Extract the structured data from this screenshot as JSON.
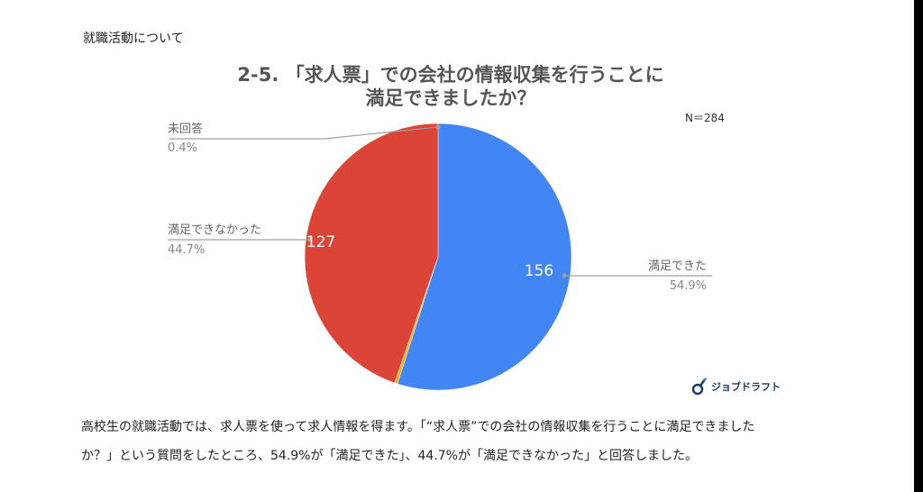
{
  "header": {
    "section_label": "就職活動について"
  },
  "chart_data": {
    "type": "pie",
    "title_line1": "2-5. 「求人票」での会社の情報収集を行うことに",
    "title_line2": "満足できましたか？",
    "note": "N＝284",
    "slices": [
      {
        "label": "満足できた",
        "value": 156,
        "percent": "54.9%",
        "color": "#4285f4"
      },
      {
        "label": "未回答",
        "value": 1,
        "percent": "0.4%",
        "color": "#f4b400"
      },
      {
        "label": "満足できなかった",
        "value": 127,
        "percent": "44.7%",
        "color": "#db4437"
      }
    ],
    "start_at": "top",
    "direction": "clockwise"
  },
  "logo": {
    "text": "ジョブドラフト",
    "icon": "jobdraft-logo-icon",
    "color": "#1c3a66"
  },
  "body": {
    "line1": "高校生の就職活動では、求人票を使って求人情報を得ます。「“求人票”での会社の情報収集を行うことに満足できました",
    "line2": "か？」という質問をしたところ、54.9%が「満足できた」、44.7%が「満足できなかった」と回答しました。"
  }
}
